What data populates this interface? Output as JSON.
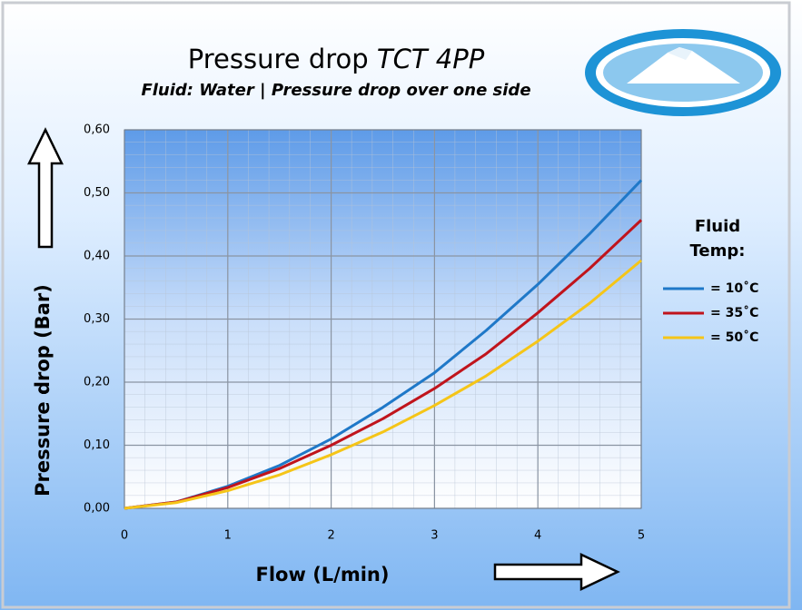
{
  "chart_data": {
    "type": "line",
    "title": "Pressure drop",
    "model": "TCT 4PP",
    "subtitle": "Fluid: Water | Pressure drop over one side",
    "xlabel": "Flow (L/min)",
    "ylabel": "Pressure drop (Bar)",
    "legend_title": [
      "Fluid",
      "Temp:"
    ],
    "legend": "right",
    "grid": true,
    "x": [
      0,
      0.5,
      1,
      1.5,
      2,
      2.5,
      3,
      3.5,
      4,
      4.5,
      5
    ],
    "xlim": [
      0,
      5
    ],
    "xticks": [
      0,
      1,
      2,
      3,
      4,
      5
    ],
    "ylim": [
      0,
      0.6
    ],
    "yticks": [
      {
        "value": 0,
        "label": "0,00"
      },
      {
        "value": 0.1,
        "label": "0,10"
      },
      {
        "value": 0.2,
        "label": "0,20"
      },
      {
        "value": 0.3,
        "label": "0,30"
      },
      {
        "value": 0.4,
        "label": "0,40"
      },
      {
        "value": 0.5,
        "label": "0,50"
      },
      {
        "value": 0.6,
        "label": "0,60"
      }
    ],
    "series": [
      {
        "name": "= 10˚C",
        "color": "#1f78c8",
        "values": [
          0,
          0.01,
          0.035,
          0.068,
          0.11,
          0.16,
          0.215,
          0.282,
          0.355,
          0.435,
          0.52
        ]
      },
      {
        "name": "= 35˚C",
        "color": "#c0141c",
        "values": [
          0,
          0.01,
          0.033,
          0.063,
          0.1,
          0.142,
          0.19,
          0.245,
          0.31,
          0.38,
          0.457
        ]
      },
      {
        "name": "= 50˚C",
        "color": "#f5c518",
        "values": [
          0,
          0.009,
          0.028,
          0.053,
          0.085,
          0.121,
          0.163,
          0.21,
          0.265,
          0.325,
          0.393
        ]
      }
    ]
  }
}
